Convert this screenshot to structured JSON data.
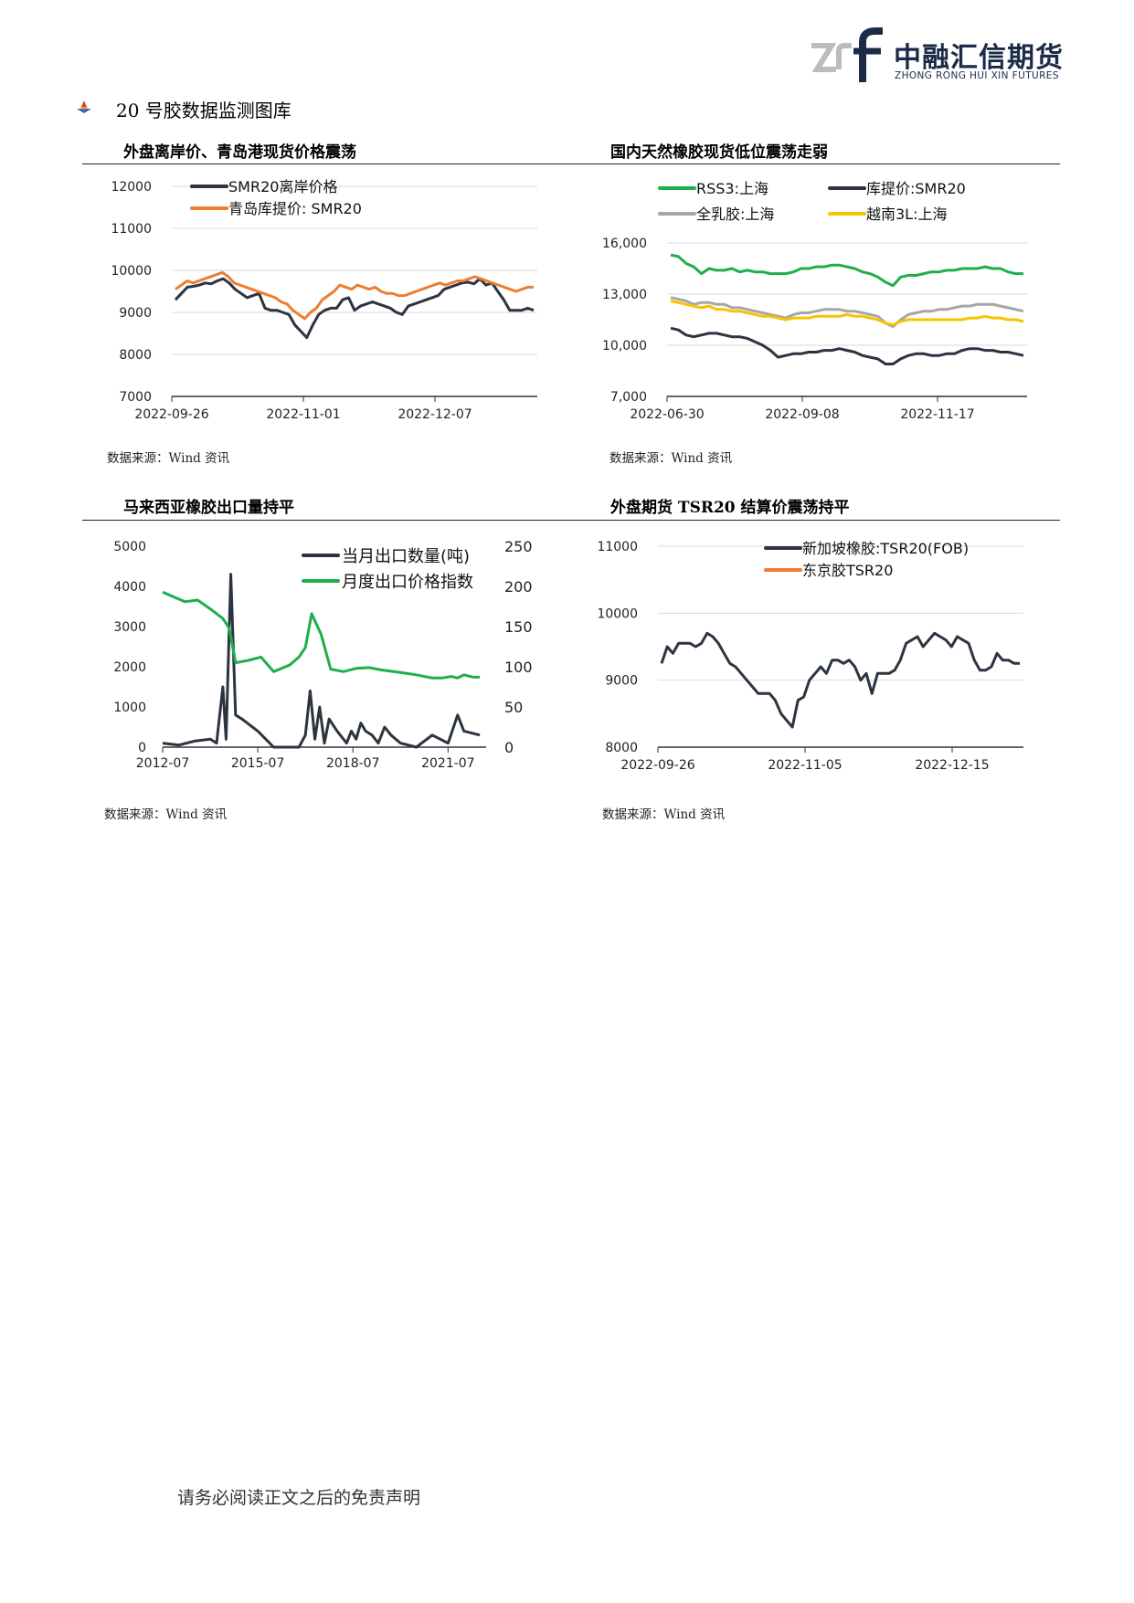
{
  "header": {
    "logo_cn": "中融汇信期货",
    "logo_en": "ZHONG RONG HUI XIN FUTURES"
  },
  "section": {
    "title": "20 号胶数据监测图库"
  },
  "charts": [
    {
      "title": "外盘离岸价、青岛港现货价格震荡",
      "source": "数据来源：Wind 资讯"
    },
    {
      "title": "国内天然橡胶现货低位震荡走弱",
      "source": "数据来源：Wind 资讯"
    },
    {
      "title": "马来西亚橡胶出口量持平",
      "source": "数据来源：Wind 资讯"
    },
    {
      "title": "外盘期货 TSR20 结算价震荡持平",
      "source": "数据来源：Wind 资讯"
    }
  ],
  "footer": {
    "text": "请务必阅读正文之后的免责声明"
  },
  "colors": {
    "dark": "#2b3440",
    "orange": "#ed7d31",
    "green": "#1fae4b",
    "gray": "#a6a6a6",
    "yellow": "#f5c400",
    "brand": "#1b2a47"
  },
  "chart_data": [
    {
      "type": "line",
      "xticks": [
        "2022-09-26",
        "2022-11-01",
        "2022-12-07"
      ],
      "yticks": [
        "7000",
        "8000",
        "9000",
        "10000",
        "11000",
        "12000"
      ],
      "ylim": [
        7000,
        12000
      ],
      "legend": "top-left",
      "grid": true,
      "series": [
        {
          "name": "SMR20离岸价格",
          "color": "#2b3440",
          "values": [
            9300,
            9450,
            9600,
            9620,
            9650,
            9700,
            9680,
            9750,
            9800,
            9700,
            9550,
            9450,
            9350,
            9400,
            9450,
            9100,
            9050,
            9050,
            9000,
            8950,
            8700,
            8550,
            8400,
            8700,
            8950,
            9050,
            9100,
            9100,
            9300,
            9350,
            9050,
            9150,
            9200,
            9250,
            9200,
            9150,
            9100,
            9000,
            8950,
            9150,
            9200,
            9250,
            9300,
            9350,
            9400,
            9550,
            9600,
            9650,
            9700,
            9720,
            9680,
            9800,
            9650,
            9700,
            9500,
            9300,
            9050,
            9050,
            9050,
            9100,
            9050
          ]
        },
        {
          "name": "青岛库提价: SMR20",
          "color": "#ed7d31",
          "values": [
            9550,
            9650,
            9750,
            9700,
            9750,
            9800,
            9850,
            9900,
            9950,
            9850,
            9700,
            9650,
            9600,
            9550,
            9500,
            9450,
            9400,
            9350,
            9250,
            9200,
            9050,
            8950,
            8850,
            9000,
            9100,
            9300,
            9400,
            9500,
            9650,
            9600,
            9550,
            9650,
            9600,
            9550,
            9600,
            9500,
            9450,
            9450,
            9400,
            9400,
            9450,
            9500,
            9550,
            9600,
            9650,
            9700,
            9650,
            9700,
            9750,
            9750,
            9800,
            9850,
            9800,
            9750,
            9700,
            9650,
            9600,
            9550,
            9500,
            9550,
            9600,
            9600
          ]
        }
      ]
    },
    {
      "type": "line",
      "xticks": [
        "2022-06-30",
        "2022-09-08",
        "2022-11-17"
      ],
      "yticks": [
        "7,000",
        "10,000",
        "13,000",
        "16,000"
      ],
      "ylim": [
        7000,
        16000
      ],
      "legend": "top",
      "grid": true,
      "series": [
        {
          "name": "RSS3:上海",
          "color": "#1fae4b",
          "values": [
            15300,
            15200,
            14800,
            14600,
            14200,
            14500,
            14400,
            14400,
            14500,
            14300,
            14400,
            14300,
            14300,
            14200,
            14200,
            14200,
            14300,
            14500,
            14500,
            14600,
            14600,
            14700,
            14700,
            14600,
            14500,
            14300,
            14200,
            14000,
            13700,
            13500,
            14000,
            14100,
            14100,
            14200,
            14300,
            14300,
            14400,
            14400,
            14500,
            14500,
            14500,
            14600,
            14500,
            14500,
            14300,
            14200,
            14200
          ]
        },
        {
          "name": "库提价:SMR20",
          "color": "#2b3440",
          "values": [
            11000,
            10900,
            10600,
            10500,
            10600,
            10700,
            10700,
            10600,
            10500,
            10500,
            10400,
            10200,
            10000,
            9700,
            9300,
            9400,
            9500,
            9500,
            9600,
            9600,
            9700,
            9700,
            9800,
            9700,
            9600,
            9400,
            9300,
            9200,
            8900,
            8900,
            9200,
            9400,
            9500,
            9500,
            9400,
            9400,
            9500,
            9500,
            9700,
            9800,
            9800,
            9700,
            9700,
            9600,
            9600,
            9500,
            9400
          ]
        },
        {
          "name": "全乳胶:上海",
          "color": "#a6a6a6",
          "values": [
            12800,
            12700,
            12600,
            12400,
            12500,
            12500,
            12400,
            12400,
            12200,
            12200,
            12100,
            12000,
            11900,
            11800,
            11700,
            11600,
            11800,
            11900,
            11900,
            12000,
            12100,
            12100,
            12100,
            12000,
            12000,
            11900,
            11800,
            11700,
            11300,
            11100,
            11500,
            11800,
            11900,
            12000,
            12000,
            12100,
            12100,
            12200,
            12300,
            12300,
            12400,
            12400,
            12400,
            12300,
            12200,
            12100,
            12000
          ]
        },
        {
          "name": "越南3L:上海",
          "color": "#f5c400",
          "values": [
            12600,
            12500,
            12400,
            12300,
            12200,
            12300,
            12100,
            12100,
            12000,
            12000,
            11900,
            11800,
            11700,
            11700,
            11600,
            11500,
            11600,
            11600,
            11600,
            11700,
            11700,
            11700,
            11700,
            11800,
            11700,
            11700,
            11600,
            11500,
            11300,
            11200,
            11400,
            11500,
            11500,
            11500,
            11500,
            11500,
            11500,
            11500,
            11500,
            11600,
            11600,
            11700,
            11600,
            11600,
            11500,
            11500,
            11400
          ]
        }
      ]
    },
    {
      "type": "line",
      "xticks": [
        "2012-07",
        "2015-07",
        "2018-07",
        "2021-07"
      ],
      "yticks_left": [
        "0",
        "1000",
        "2000",
        "3000",
        "4000",
        "5000"
      ],
      "yticks_right": [
        "0",
        "50",
        "100",
        "150",
        "200",
        "250"
      ],
      "ylim": [
        0,
        5000
      ],
      "ylim_right": [
        0,
        250
      ],
      "legend": "top-right",
      "grid": false,
      "series": [
        {
          "name": "当月出口数量(吨)",
          "color": "#2b3440",
          "axis": "left",
          "x": [
            2012.5,
            2013.0,
            2013.5,
            2014.0,
            2014.2,
            2014.4,
            2014.5,
            2014.65,
            2014.8,
            2015.0,
            2015.5,
            2016.0,
            2016.8,
            2017.0,
            2017.15,
            2017.3,
            2017.45,
            2017.6,
            2017.75,
            2018.0,
            2018.3,
            2018.45,
            2018.6,
            2018.75,
            2018.9,
            2019.1,
            2019.3,
            2019.5,
            2019.7,
            2020.0,
            2020.5,
            2021.0,
            2021.5,
            2021.8,
            2022.0,
            2022.5
          ],
          "values": [
            100,
            50,
            150,
            200,
            100,
            1500,
            200,
            4300,
            800,
            700,
            400,
            0,
            0,
            300,
            1400,
            200,
            1000,
            100,
            700,
            400,
            100,
            400,
            200,
            600,
            400,
            300,
            100,
            500,
            300,
            100,
            0,
            300,
            100,
            800,
            400,
            300
          ]
        },
        {
          "name": "月度出口价格指数",
          "color": "#1fae4b",
          "axis": "right",
          "x": [
            2012.5,
            2012.9,
            2013.2,
            2013.6,
            2014.0,
            2014.4,
            2014.6,
            2014.8,
            2015.2,
            2015.6,
            2016.0,
            2016.5,
            2016.8,
            2017.0,
            2017.2,
            2017.5,
            2017.8,
            2018.2,
            2018.6,
            2019.0,
            2019.4,
            2020.0,
            2020.5,
            2021.0,
            2021.3,
            2021.6,
            2021.8,
            2022.0,
            2022.3,
            2022.5
          ],
          "values": [
            193,
            186,
            181,
            183,
            172,
            160,
            148,
            105,
            108,
            112,
            94,
            102,
            112,
            124,
            166,
            140,
            97,
            94,
            98,
            99,
            96,
            93,
            90,
            86,
            86,
            88,
            86,
            90,
            87,
            87
          ]
        }
      ]
    },
    {
      "type": "line",
      "xticks": [
        "2022-09-26",
        "2022-11-05",
        "2022-12-15"
      ],
      "yticks": [
        "8000",
        "9000",
        "10000",
        "11000"
      ],
      "ylim": [
        8000,
        11000
      ],
      "legend": "top-center",
      "grid": true,
      "series": [
        {
          "name": "新加坡橡胶:TSR20(FOB)",
          "color": "#2b3440",
          "values": [
            9250,
            9500,
            9400,
            9550,
            9550,
            9550,
            9500,
            9550,
            9700,
            9650,
            9550,
            9400,
            9250,
            9200,
            9100,
            9000,
            8900,
            8800,
            8800,
            8800,
            8700,
            8500,
            8400,
            8300,
            8700,
            8750,
            9000,
            9100,
            9200,
            9100,
            9300,
            9300,
            9250,
            9300,
            9200,
            9000,
            9100,
            8800,
            9100,
            9100,
            9100,
            9150,
            9300,
            9550,
            9600,
            9650,
            9500,
            9600,
            9700,
            9650,
            9600,
            9500,
            9650,
            9600,
            9550,
            9300,
            9150,
            9150,
            9200,
            9400,
            9300,
            9300,
            9250,
            9250
          ]
        },
        {
          "name": "东京胶TSR20",
          "color": "#ed7d31",
          "values": []
        }
      ]
    }
  ]
}
